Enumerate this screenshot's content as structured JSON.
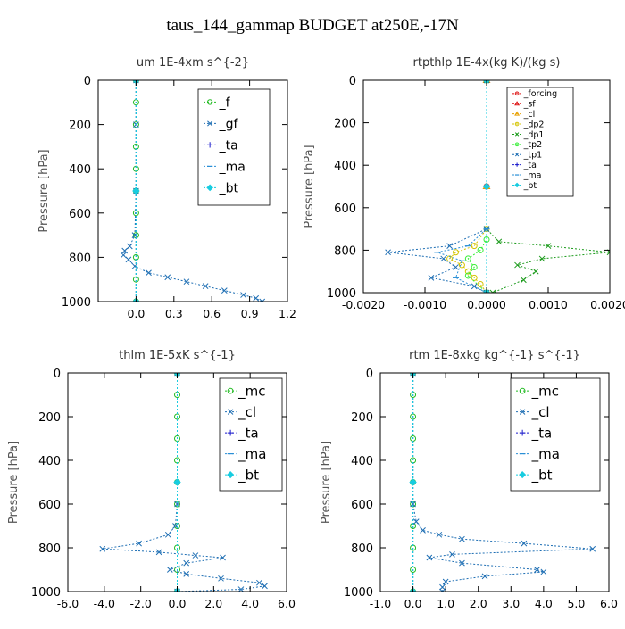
{
  "suptitle": "taus_144_gammap  BUDGET at250E,-17N",
  "chart_data": [
    {
      "type": "line",
      "title": "um   1E-4xm s^{-2}",
      "ylabel": "Pressure  [hPa]",
      "xlim": [
        -0.3,
        1.2
      ],
      "ylim": [
        1000,
        0
      ],
      "xticks": [
        0.0,
        0.3,
        0.6,
        0.9,
        1.2
      ],
      "xtick_labels": [
        "0.0",
        "0.3",
        "0.6",
        "0.9",
        "1.2"
      ],
      "yticks": [
        0,
        200,
        400,
        600,
        800,
        1000
      ],
      "ytick_labels": [
        "0",
        "200",
        "400",
        "600",
        "800",
        "1000"
      ],
      "legend_position": "top-right",
      "series": [
        {
          "name": "_f",
          "color": "#22bb22",
          "marker": "circle",
          "x": [
            0.0,
            0.0,
            0.0,
            0.0,
            0.0,
            0.0,
            0.0,
            0.0,
            0.0,
            0.0,
            0.0
          ],
          "y": [
            0,
            100,
            200,
            300,
            400,
            500,
            600,
            700,
            800,
            900,
            1000
          ]
        },
        {
          "name": "_gf",
          "color": "#1f6fb4",
          "marker": "x",
          "x": [
            0.0,
            0.0,
            0.0,
            -0.01,
            -0.05,
            -0.09,
            -0.1,
            -0.06,
            -0.01,
            0.1,
            0.25,
            0.4,
            0.55,
            0.7,
            0.85,
            0.95,
            1.0
          ],
          "y": [
            0,
            200,
            500,
            700,
            750,
            770,
            790,
            810,
            840,
            870,
            890,
            910,
            930,
            950,
            970,
            985,
            1000
          ]
        },
        {
          "name": "_ta",
          "color": "#1a1acc",
          "marker": "plus",
          "x": [
            0.0,
            0.0,
            0.0
          ],
          "y": [
            0,
            500,
            1000
          ]
        },
        {
          "name": "_ma",
          "color": "#2a8fd6",
          "marker": "dash",
          "x": [
            0.0,
            0.0,
            0.0
          ],
          "y": [
            0,
            500,
            1000
          ]
        },
        {
          "name": "_bt",
          "color": "#18cce0",
          "marker": "diamond",
          "x": [
            0.0,
            0.0,
            0.0
          ],
          "y": [
            0,
            500,
            1000
          ]
        }
      ]
    },
    {
      "type": "line",
      "title": "rtpthlp   1E-4x(kg K)/(kg s)",
      "ylabel": "Pressure  [hPa]",
      "xlim": [
        -0.002,
        0.002
      ],
      "ylim": [
        1000,
        0
      ],
      "xticks": [
        -0.002,
        -0.001,
        0.0,
        0.001,
        0.002
      ],
      "xtick_labels": [
        "-0.0020",
        "-0.0010",
        "0.0000",
        "0.0010",
        "0.0020"
      ],
      "yticks": [
        0,
        200,
        400,
        600,
        800,
        1000
      ],
      "ytick_labels": [
        "0",
        "200",
        "400",
        "600",
        "800",
        "1000"
      ],
      "legend_position": "top-right",
      "series": [
        {
          "name": "_forcing",
          "color": "#dd1111",
          "marker": "circle",
          "x": [
            0.0,
            0.0,
            0.0
          ],
          "y": [
            0,
            500,
            1000
          ]
        },
        {
          "name": "_sf",
          "color": "#dd1111",
          "marker": "triangle",
          "x": [
            0.0,
            0.0,
            0.0
          ],
          "y": [
            0,
            500,
            1000
          ]
        },
        {
          "name": "_cl",
          "color": "#e8a000",
          "marker": "triangle",
          "x": [
            0.0,
            0.0,
            0.0
          ],
          "y": [
            0,
            500,
            1000
          ]
        },
        {
          "name": "_dp2",
          "color": "#d4c400",
          "marker": "circle",
          "x": [
            0.0,
            0.0,
            -0.0002,
            -0.0005,
            -0.0006,
            -0.0004,
            -0.0003,
            -0.0002,
            -0.0001,
            0.0
          ],
          "y": [
            0,
            700,
            780,
            810,
            840,
            870,
            900,
            930,
            960,
            1000
          ]
        },
        {
          "name": "_dp1",
          "color": "#1a9a1a",
          "marker": "x",
          "x": [
            0.0,
            0.0,
            0.0002,
            0.001,
            0.002,
            0.0009,
            0.0005,
            0.0008,
            0.0006,
            0.0001
          ],
          "y": [
            0,
            700,
            760,
            780,
            810,
            840,
            870,
            900,
            940,
            1000
          ]
        },
        {
          "name": "_tp2",
          "color": "#33ee33",
          "marker": "circle",
          "x": [
            0.0,
            0.0,
            -0.0001,
            -0.0003,
            -0.0002,
            -0.0003,
            0.0
          ],
          "y": [
            0,
            750,
            800,
            840,
            880,
            920,
            1000
          ]
        },
        {
          "name": "_tp1",
          "color": "#1f6fb4",
          "marker": "x",
          "x": [
            0.0,
            0.0,
            -0.0006,
            -0.0016,
            -0.0007,
            -0.0005,
            -0.0009,
            -0.0002,
            0.0
          ],
          "y": [
            0,
            700,
            780,
            810,
            840,
            880,
            930,
            970,
            1000
          ]
        },
        {
          "name": "_ta",
          "color": "#1a1acc",
          "marker": "plus",
          "x": [
            0.0,
            0.0,
            0.0
          ],
          "y": [
            0,
            500,
            1000
          ]
        },
        {
          "name": "_ma",
          "color": "#2a8fd6",
          "marker": "dash",
          "x": [
            0.0,
            0.0,
            -0.0003,
            -0.0008,
            -0.0004,
            -0.0005,
            0.0
          ],
          "y": [
            0,
            700,
            780,
            810,
            850,
            930,
            1000
          ]
        },
        {
          "name": "_bt",
          "color": "#18cce0",
          "marker": "diamond",
          "x": [
            0.0,
            0.0,
            0.0
          ],
          "y": [
            0,
            500,
            1000
          ]
        }
      ]
    },
    {
      "type": "line",
      "title": "thlm   1E-5xK  s^{-1}",
      "ylabel": "Pressure  [hPa]",
      "xlim": [
        -6.0,
        6.0
      ],
      "ylim": [
        1000,
        0
      ],
      "xticks": [
        -6,
        -4,
        -2,
        0,
        2,
        4,
        6
      ],
      "xtick_labels": [
        "-6.0",
        "-4.0",
        "-2.0",
        "0.0",
        "2.0",
        "4.0",
        "6.0"
      ],
      "yticks": [
        0,
        200,
        400,
        600,
        800,
        1000
      ],
      "ytick_labels": [
        "0",
        "200",
        "400",
        "600",
        "800",
        "1000"
      ],
      "legend_position": "top-right",
      "series": [
        {
          "name": "_mc",
          "color": "#22bb22",
          "marker": "circle",
          "x": [
            0,
            0,
            0,
            0,
            0,
            0,
            0,
            0,
            0,
            0,
            0
          ],
          "y": [
            0,
            100,
            200,
            300,
            400,
            500,
            600,
            700,
            800,
            900,
            1000
          ]
        },
        {
          "name": "_cl",
          "color": "#1f6fb4",
          "marker": "x",
          "x": [
            0.0,
            0.0,
            -0.1,
            -0.5,
            -2.1,
            -4.1,
            -1.0,
            1.0,
            2.5,
            0.5,
            -0.4,
            0.5,
            2.4,
            4.5,
            4.8,
            3.5,
            0.0
          ],
          "y": [
            0,
            600,
            700,
            740,
            780,
            805,
            820,
            835,
            845,
            870,
            900,
            920,
            940,
            960,
            975,
            990,
            1000
          ]
        },
        {
          "name": "_ta",
          "color": "#1a1acc",
          "marker": "plus",
          "x": [
            0,
            0,
            0
          ],
          "y": [
            0,
            500,
            1000
          ]
        },
        {
          "name": "_ma",
          "color": "#2a8fd6",
          "marker": "dash",
          "x": [
            0,
            0,
            0
          ],
          "y": [
            0,
            500,
            1000
          ]
        },
        {
          "name": "_bt",
          "color": "#18cce0",
          "marker": "diamond",
          "x": [
            0,
            0,
            0
          ],
          "y": [
            0,
            500,
            1000
          ]
        }
      ]
    },
    {
      "type": "line",
      "title": "rtm   1E-8xkg kg^{-1} s^{-1}",
      "ylabel": "Pressure  [hPa]",
      "xlim": [
        -1.0,
        6.0
      ],
      "ylim": [
        1000,
        0
      ],
      "xticks": [
        -1,
        0,
        1,
        2,
        3,
        4,
        5,
        6
      ],
      "xtick_labels": [
        "-1.0",
        "0.0",
        "1.0",
        "2.0",
        "3.0",
        "4.0",
        "5.0",
        "6.0"
      ],
      "yticks": [
        0,
        200,
        400,
        600,
        800,
        1000
      ],
      "ytick_labels": [
        "0",
        "200",
        "400",
        "600",
        "800",
        "1000"
      ],
      "legend_position": "top-right",
      "series": [
        {
          "name": "_mc",
          "color": "#22bb22",
          "marker": "circle",
          "x": [
            0,
            0,
            0,
            0,
            0,
            0,
            0,
            0,
            0,
            0,
            0
          ],
          "y": [
            0,
            100,
            200,
            300,
            400,
            500,
            600,
            700,
            800,
            900,
            1000
          ]
        },
        {
          "name": "_cl",
          "color": "#1f6fb4",
          "marker": "x",
          "x": [
            0.0,
            0.0,
            0.1,
            0.3,
            0.8,
            1.5,
            3.4,
            5.5,
            1.2,
            0.5,
            1.5,
            3.8,
            4.0,
            2.2,
            1.0,
            0.9,
            0.9
          ],
          "y": [
            0,
            600,
            680,
            720,
            740,
            760,
            780,
            805,
            830,
            845,
            870,
            900,
            910,
            930,
            955,
            980,
            1000
          ]
        },
        {
          "name": "_ta",
          "color": "#1a1acc",
          "marker": "plus",
          "x": [
            0,
            0,
            0
          ],
          "y": [
            0,
            500,
            1000
          ]
        },
        {
          "name": "_ma",
          "color": "#2a8fd6",
          "marker": "dash",
          "x": [
            0,
            0,
            0
          ],
          "y": [
            0,
            500,
            1000
          ]
        },
        {
          "name": "_bt",
          "color": "#18cce0",
          "marker": "diamond",
          "x": [
            0,
            0,
            0
          ],
          "y": [
            0,
            500,
            1000
          ]
        }
      ]
    }
  ]
}
